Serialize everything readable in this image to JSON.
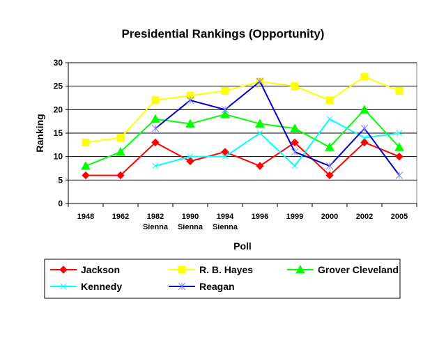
{
  "chart_data": {
    "type": "line",
    "title": "Presidential Rankings (Opportunity)",
    "xlabel": "Poll",
    "ylabel": "Ranking",
    "ylim": [
      0,
      30
    ],
    "yticks": [
      0,
      5,
      10,
      15,
      20,
      25,
      30
    ],
    "grid": true,
    "legend_position": "bottom",
    "categories": [
      [
        "1948"
      ],
      [
        "1962"
      ],
      [
        "1982",
        "Sienna"
      ],
      [
        "1990",
        "Sienna"
      ],
      [
        "1994",
        "Sienna"
      ],
      [
        "1996"
      ],
      [
        "1999"
      ],
      [
        "2000"
      ],
      [
        "2002"
      ],
      [
        "2005"
      ]
    ],
    "series": [
      {
        "name": "Jackson",
        "color": "#ff0000",
        "marker": "diamond",
        "values": [
          6,
          6,
          13,
          9,
          11,
          8,
          13,
          6,
          13,
          10
        ]
      },
      {
        "name": "R. B. Hayes",
        "color": "#ffff00",
        "marker": "square",
        "values": [
          13,
          14,
          22,
          23,
          24,
          26,
          25,
          22,
          27,
          24
        ]
      },
      {
        "name": "Grover Cleveland",
        "color": "#00ff00",
        "marker": "triangle",
        "values": [
          8,
          11,
          18,
          17,
          19,
          17,
          16,
          12,
          20,
          12
        ]
      },
      {
        "name": "Kennedy",
        "color": "#00ffff",
        "marker": "x",
        "values": [
          null,
          null,
          8,
          10,
          10,
          15,
          8,
          18,
          14,
          15
        ]
      },
      {
        "name": "Reagan",
        "color": "#0000cc",
        "marker": "star",
        "values": [
          null,
          null,
          16,
          22,
          20,
          26,
          11,
          8,
          16,
          6
        ]
      }
    ]
  }
}
